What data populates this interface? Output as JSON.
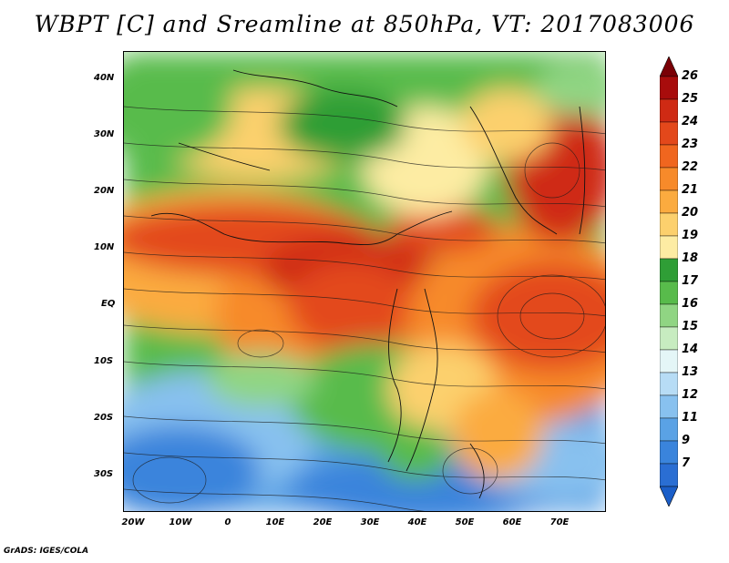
{
  "title": "WBPT [C] and Sreamline at 850hPa, VT: 2017083006",
  "credit": "GrADS: IGES/COLA",
  "latitude_labels": [
    "40N",
    "30N",
    "20N",
    "10N",
    "EQ",
    "10S",
    "20S",
    "30S"
  ],
  "longitude_labels": [
    "20W",
    "10W",
    "0",
    "10E",
    "20E",
    "30E",
    "40E",
    "50E",
    "60E",
    "70E"
  ],
  "colorbar": {
    "labels": [
      "26",
      "25",
      "24",
      "23",
      "22",
      "21",
      "20",
      "19",
      "18",
      "17",
      "16",
      "15",
      "14",
      "13",
      "12",
      "11",
      "9",
      "7"
    ],
    "colors": [
      "#7a0006",
      "#a80c0c",
      "#cf2a14",
      "#e3481b",
      "#f0661f",
      "#f78a2a",
      "#fbab3f",
      "#fcd06d",
      "#fdeca3",
      "#2f9e36",
      "#58bb4b",
      "#90d583",
      "#c7ecc0",
      "#e4f6f7",
      "#b7dcf5",
      "#88c1ef",
      "#5aa2e5",
      "#3a84dc",
      "#2a6ed3",
      "#1b5ec8"
    ]
  }
}
